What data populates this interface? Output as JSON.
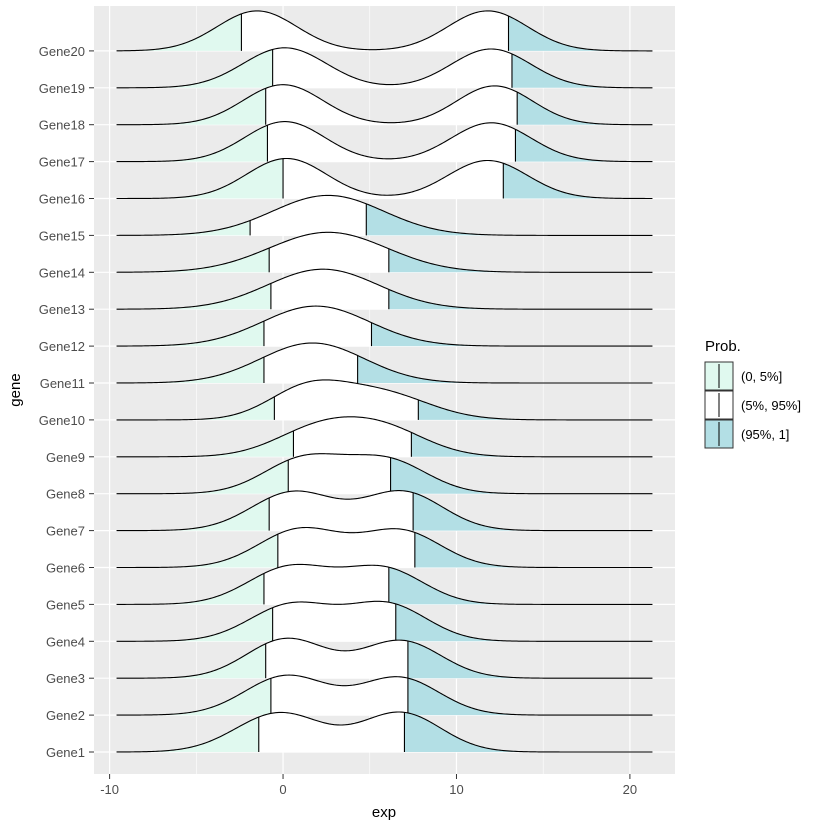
{
  "chart_data": {
    "type": "ridgeline",
    "xlabel": "exp",
    "ylabel": "gene",
    "xlim": [
      -10.9,
      22.6
    ],
    "xticks": [
      -10,
      0,
      10,
      20
    ],
    "x_range": [
      -9.6,
      21.3
    ],
    "categories": [
      "Gene1",
      "Gene2",
      "Gene3",
      "Gene4",
      "Gene5",
      "Gene6",
      "Gene7",
      "Gene8",
      "Gene9",
      "Gene10",
      "Gene11",
      "Gene12",
      "Gene13",
      "Gene14",
      "Gene15",
      "Gene16",
      "Gene17",
      "Gene18",
      "Gene19",
      "Gene20"
    ],
    "series": [
      {
        "name": "Gene1",
        "q05": -1.4,
        "q95": 7.0,
        "peaks": [
          [
            -0.2,
            2.5,
            1.0
          ],
          [
            6.8,
            2.3,
            1.0
          ]
        ]
      },
      {
        "name": "Gene2",
        "q05": -0.7,
        "q95": 7.2,
        "peaks": [
          [
            0.2,
            2.4,
            1.0
          ],
          [
            6.7,
            2.3,
            0.95
          ]
        ]
      },
      {
        "name": "Gene3",
        "q05": -1.0,
        "q95": 7.2,
        "peaks": [
          [
            0.2,
            2.3,
            1.0
          ],
          [
            6.8,
            2.3,
            0.95
          ]
        ]
      },
      {
        "name": "Gene4",
        "q05": -0.6,
        "q95": 6.5,
        "peaks": [
          [
            0.5,
            2.4,
            1.0
          ],
          [
            6.0,
            2.3,
            1.0
          ]
        ]
      },
      {
        "name": "Gene5",
        "q05": -1.1,
        "q95": 6.1,
        "peaks": [
          [
            0.4,
            2.4,
            1.0
          ],
          [
            5.8,
            2.3,
            0.95
          ]
        ]
      },
      {
        "name": "Gene6",
        "q05": -0.3,
        "q95": 7.6,
        "peaks": [
          [
            1.0,
            2.4,
            1.0
          ],
          [
            6.8,
            2.3,
            0.95
          ]
        ]
      },
      {
        "name": "Gene7",
        "q05": -0.8,
        "q95": 7.5,
        "peaks": [
          [
            0.6,
            2.4,
            1.0
          ],
          [
            6.9,
            2.3,
            1.0
          ]
        ]
      },
      {
        "name": "Gene8",
        "q05": 0.3,
        "q95": 6.2,
        "peaks": [
          [
            1.2,
            2.3,
            1.0
          ],
          [
            6.0,
            2.3,
            0.95
          ]
        ]
      },
      {
        "name": "Gene9",
        "q05": 0.6,
        "q95": 7.4,
        "peaks": [
          [
            2.0,
            2.5,
            1.0
          ],
          [
            5.8,
            2.5,
            1.0
          ]
        ]
      },
      {
        "name": "Gene10",
        "q05": -0.5,
        "q95": 7.8,
        "peaks": [
          [
            1.3,
            2.2,
            1.0
          ],
          [
            5.5,
            2.8,
            0.97
          ]
        ]
      },
      {
        "name": "Gene11",
        "q05": -1.1,
        "q95": 4.3,
        "peaks": [
          [
            1.7,
            3.0,
            1.0
          ]
        ]
      },
      {
        "name": "Gene12",
        "q05": -1.1,
        "q95": 5.1,
        "peaks": [
          [
            1.9,
            3.1,
            1.0
          ]
        ]
      },
      {
        "name": "Gene13",
        "q05": -0.7,
        "q95": 6.1,
        "peaks": [
          [
            2.3,
            3.2,
            1.0
          ]
        ]
      },
      {
        "name": "Gene14",
        "q05": -0.8,
        "q95": 6.1,
        "peaks": [
          [
            2.6,
            3.4,
            1.0
          ]
        ]
      },
      {
        "name": "Gene15",
        "q05": -1.9,
        "q95": 4.8,
        "peaks": [
          [
            2.6,
            3.2,
            1.0
          ]
        ]
      },
      {
        "name": "Gene16",
        "q05": 0.0,
        "q95": 12.7,
        "peaks": [
          [
            0.2,
            2.3,
            1.0
          ],
          [
            11.8,
            2.3,
            0.95
          ]
        ]
      },
      {
        "name": "Gene17",
        "q05": -0.9,
        "q95": 13.4,
        "peaks": [
          [
            0.1,
            2.3,
            1.0
          ],
          [
            12.0,
            2.3,
            0.97
          ]
        ]
      },
      {
        "name": "Gene18",
        "q05": -1.0,
        "q95": 13.5,
        "peaks": [
          [
            0.0,
            2.3,
            1.0
          ],
          [
            12.2,
            2.2,
            0.97
          ]
        ]
      },
      {
        "name": "Gene19",
        "q05": -0.6,
        "q95": 13.2,
        "peaks": [
          [
            0.1,
            2.4,
            1.0
          ],
          [
            12.0,
            2.3,
            0.97
          ]
        ]
      },
      {
        "name": "Gene20",
        "q05": -2.4,
        "q95": 13.0,
        "peaks": [
          [
            -1.5,
            2.3,
            1.0
          ],
          [
            11.8,
            2.3,
            1.0
          ]
        ]
      }
    ],
    "legend": {
      "title": "Prob.",
      "position": "right",
      "items": [
        {
          "label": "(0, 5%]",
          "color": "#e0f9ef"
        },
        {
          "label": "(5%, 95%]",
          "color": "#ffffff"
        },
        {
          "label": "(95%, 1]",
          "color": "#b3dfe5"
        }
      ]
    },
    "background_color": "#ebebeb",
    "gridline_color": "#ffffff"
  }
}
